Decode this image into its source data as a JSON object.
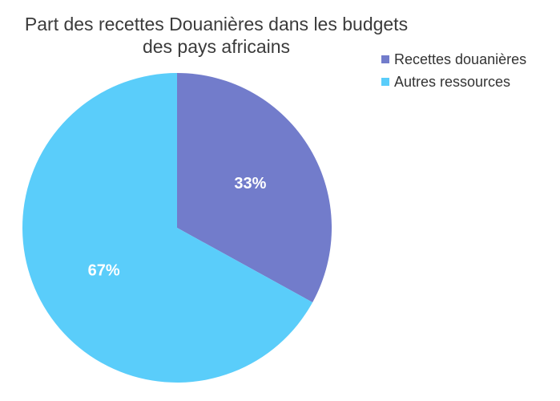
{
  "chart_data": {
    "type": "pie",
    "title_lines": [
      "Part des recettes Douanières dans les budgets",
      "des pays africains"
    ],
    "categories": [
      "Recettes douanières",
      "Autres ressources"
    ],
    "values": [
      33,
      67
    ],
    "data_labels": [
      "33%",
      "67%"
    ],
    "colors": [
      "#727ccb",
      "#5acdfa"
    ],
    "legend_position": "top-right"
  }
}
